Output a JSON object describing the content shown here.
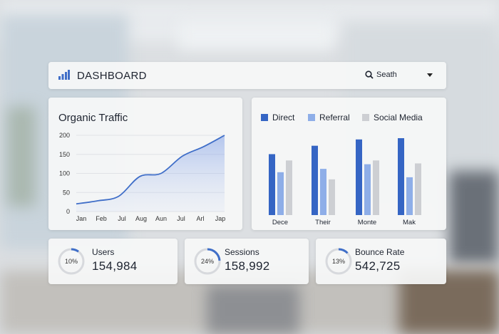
{
  "header": {
    "title": "DASHBOARD",
    "search_value": "Seath"
  },
  "traffic": {
    "title": "Organic Traffic"
  },
  "referral": {},
  "stats": [
    {
      "label": "Users",
      "value": "154,984",
      "percent_label": "10%",
      "percent": 10
    },
    {
      "label": "Sessions",
      "value": "158,992",
      "percent_label": "24%",
      "percent": 24
    },
    {
      "label": "Bounce Rate",
      "value": "542,725",
      "percent_label": "13%",
      "percent": 13
    }
  ],
  "chart_data": [
    {
      "type": "area",
      "title": "Organic Traffic",
      "categories": [
        "Jan",
        "Feb",
        "Jul",
        "Aug",
        "Aun",
        "Jul",
        "Arl",
        "Jap"
      ],
      "y_ticks": [
        0,
        50,
        100,
        150,
        200
      ],
      "ylim": [
        0,
        200
      ],
      "values": [
        20,
        28,
        40,
        92,
        100,
        145,
        170,
        200
      ],
      "color": "#3f6ec8",
      "grid": true
    },
    {
      "type": "bar",
      "categories": [
        "Dece",
        "Their",
        "Monte",
        "Mak"
      ],
      "ylim": [
        0,
        210
      ],
      "series": [
        {
          "name": "Direct",
          "color": "#3565c4",
          "values": [
            145,
            165,
            180,
            183
          ]
        },
        {
          "name": "Referral",
          "color": "#8eaee8",
          "values": [
            102,
            110,
            121,
            90
          ]
        },
        {
          "name": "Social Media",
          "color": "#cdcfd3",
          "values": [
            130,
            85,
            130,
            123
          ]
        }
      ],
      "legend": "top"
    }
  ]
}
